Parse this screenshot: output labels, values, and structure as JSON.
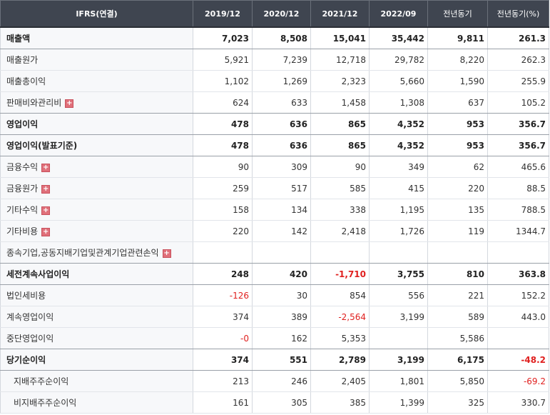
{
  "header": {
    "label": "IFRS(연결)",
    "periods": [
      "2019/12",
      "2020/12",
      "2021/12",
      "2022/09",
      "전년동기",
      "전년동기(%)"
    ]
  },
  "expand_icon_glyph": "+",
  "colors": {
    "header_bg": "#3f4550",
    "negative": "#e0201f",
    "label_bg": "#f7f8fa"
  },
  "rows": [
    {
      "label": "매출액",
      "values": [
        "7,023",
        "8,508",
        "15,041",
        "35,442",
        "9,811",
        "261.3"
      ]
    },
    {
      "label": "매출원가",
      "values": [
        "5,921",
        "7,239",
        "12,718",
        "29,782",
        "8,220",
        "262.3"
      ]
    },
    {
      "label": "매출총이익",
      "values": [
        "1,102",
        "1,269",
        "2,323",
        "5,660",
        "1,590",
        "255.9"
      ]
    },
    {
      "label": "판매비와관리비",
      "values": [
        "624",
        "633",
        "1,458",
        "1,308",
        "637",
        "105.2"
      ]
    },
    {
      "label": "영업이익",
      "values": [
        "478",
        "636",
        "865",
        "4,352",
        "953",
        "356.7"
      ]
    },
    {
      "label": "영업이익(발표기준)",
      "values": [
        "478",
        "636",
        "865",
        "4,352",
        "953",
        "356.7"
      ]
    },
    {
      "label": "금융수익",
      "values": [
        "90",
        "309",
        "90",
        "349",
        "62",
        "465.6"
      ]
    },
    {
      "label": "금융원가",
      "values": [
        "259",
        "517",
        "585",
        "415",
        "220",
        "88.5"
      ]
    },
    {
      "label": "기타수익",
      "values": [
        "158",
        "134",
        "338",
        "1,195",
        "135",
        "788.5"
      ]
    },
    {
      "label": "기타비용",
      "values": [
        "220",
        "142",
        "2,418",
        "1,726",
        "119",
        "1344.7"
      ]
    },
    {
      "label": "종속기업,공동지배기업및관계기업관련손익",
      "values": [
        "",
        "",
        "",
        "",
        "",
        ""
      ]
    },
    {
      "label": "세전계속사업이익",
      "values": [
        "248",
        "420",
        "-1,710",
        "3,755",
        "810",
        "363.8"
      ]
    },
    {
      "label": "법인세비용",
      "values": [
        "-126",
        "30",
        "854",
        "556",
        "221",
        "152.2"
      ]
    },
    {
      "label": "계속영업이익",
      "values": [
        "374",
        "389",
        "-2,564",
        "3,199",
        "589",
        "443.0"
      ]
    },
    {
      "label": "중단영업이익",
      "values": [
        "-0",
        "162",
        "5,353",
        "",
        "5,586",
        ""
      ]
    },
    {
      "label": "당기순이익",
      "values": [
        "374",
        "551",
        "2,789",
        "3,199",
        "6,175",
        "-48.2"
      ]
    },
    {
      "label": "지배주주순이익",
      "values": [
        "213",
        "246",
        "2,405",
        "1,801",
        "5,850",
        "-69.2"
      ]
    },
    {
      "label": "비지배주주순이익",
      "values": [
        "161",
        "305",
        "385",
        "1,399",
        "325",
        "330.7"
      ]
    }
  ]
}
